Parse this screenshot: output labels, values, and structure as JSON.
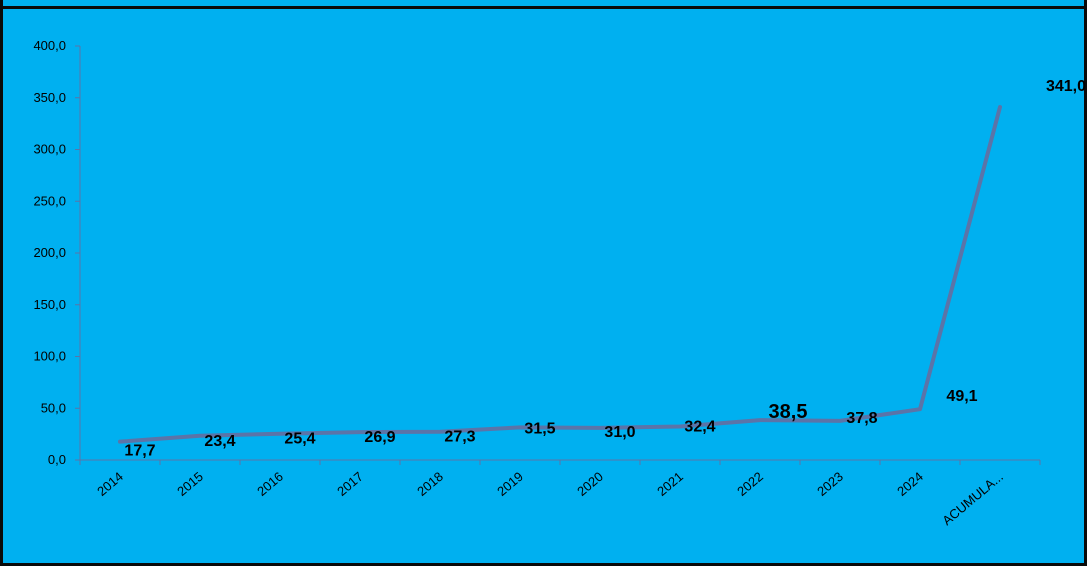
{
  "chart_data": {
    "type": "line",
    "title": "",
    "xlabel": "",
    "ylabel": "",
    "categories": [
      "2014",
      "2015",
      "2016",
      "2017",
      "2018",
      "2019",
      "2020",
      "2021",
      "2022",
      "2023",
      "2024",
      "ACUMULA..."
    ],
    "values": [
      17.7,
      23.4,
      25.4,
      26.9,
      27.3,
      31.5,
      31.0,
      32.4,
      38.5,
      37.8,
      49.1,
      341.0
    ],
    "data_labels": [
      "17,7",
      "23,4",
      "25,4",
      "26,9",
      "27,3",
      "31,5",
      "31,0",
      "32,4",
      "38,5",
      "37,8",
      "49,1",
      "341,0"
    ],
    "ylim": [
      0,
      400
    ],
    "yticks": [
      0,
      50,
      100,
      150,
      200,
      250,
      300,
      350,
      400
    ],
    "ytick_labels": [
      "0,0",
      "50,0",
      "100,0",
      "150,0",
      "200,0",
      "250,0",
      "300,0",
      "350,0",
      "400,0"
    ],
    "grid": false,
    "legend": "none",
    "colors": {
      "background": "#00B0F0",
      "line": "#5B74A8",
      "axis": "#5B74A8",
      "text": "#000000",
      "frame": "#0A0A0A"
    }
  }
}
